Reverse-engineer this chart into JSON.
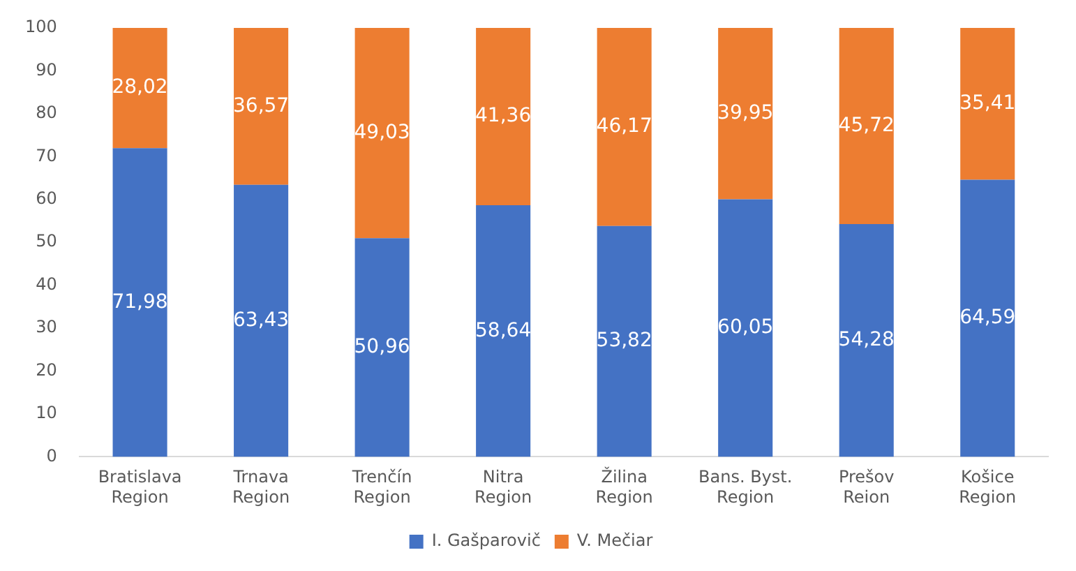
{
  "chart_data": {
    "type": "bar",
    "stacked": true,
    "categories": [
      "Bratislava Region",
      "Trnava Region",
      "Trenčín Region",
      "Nitra Region",
      "Žilina Region",
      "Bans. Byst. Region",
      "Prešov Reion",
      "Košice Region"
    ],
    "series": [
      {
        "name": "I. Gašparovič",
        "color": "#4472c4",
        "values": [
          71.98,
          63.43,
          50.96,
          58.64,
          53.82,
          60.05,
          54.28,
          64.59
        ],
        "value_labels": [
          "71,98",
          "63,43",
          "50,96",
          "58,64",
          "53,82",
          "60,05",
          "54,28",
          "64,59"
        ]
      },
      {
        "name": "V. Mečiar",
        "color": "#ed7d31",
        "values": [
          28.02,
          36.57,
          49.03,
          41.36,
          46.17,
          39.95,
          45.72,
          35.41
        ],
        "value_labels": [
          "28,02",
          "36,57",
          "49,03",
          "41,36",
          "46,17",
          "39,95",
          "45,72",
          "35,41"
        ]
      }
    ],
    "ylim": [
      0,
      100
    ],
    "yticks": [
      0,
      10,
      20,
      30,
      40,
      50,
      60,
      70,
      80,
      90,
      100
    ],
    "grid": false,
    "legend": "bottom"
  }
}
